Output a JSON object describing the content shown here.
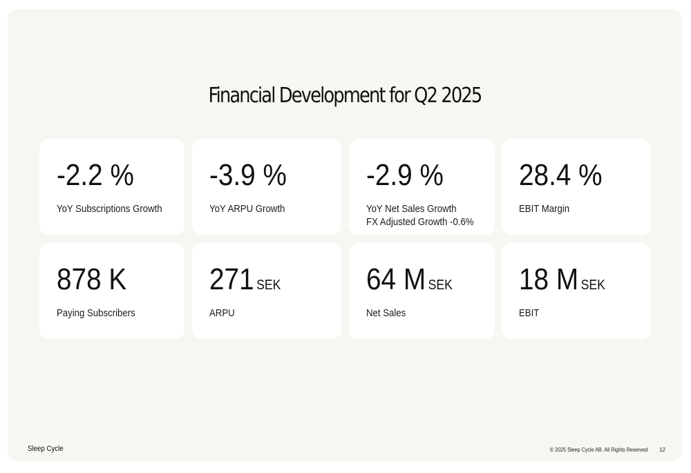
{
  "slide": {
    "title": "Financial Development for Q2 2025"
  },
  "kpis": [
    {
      "value": "-2.2 %",
      "unit": "",
      "label": "YoY Subscriptions Growth",
      "label2": ""
    },
    {
      "value": "-3.9 %",
      "unit": "",
      "label": "YoY ARPU Growth",
      "label2": ""
    },
    {
      "value": "-2.9 %",
      "unit": "",
      "label": "YoY Net Sales Growth",
      "label2": "FX Adjusted Growth -0.6%"
    },
    {
      "value": "28.4 %",
      "unit": "",
      "label": "EBIT Margin",
      "label2": ""
    },
    {
      "value": "878 K",
      "unit": "",
      "label": "Paying Subscribers",
      "label2": ""
    },
    {
      "value": "271",
      "unit": "SEK",
      "label": "ARPU",
      "label2": ""
    },
    {
      "value": "64 M",
      "unit": "SEK",
      "label": "Net Sales",
      "label2": ""
    },
    {
      "value": "18 M",
      "unit": "SEK",
      "label": "EBIT",
      "label2": ""
    }
  ],
  "footer": {
    "brand": "Sleep Cycle",
    "copyright": "© 2025 Sleep Cycle AB. All Rights Reserved",
    "page": "12"
  },
  "colors": {
    "background": "#f8f6f1",
    "card": "#ffffff",
    "text": "#111111"
  }
}
